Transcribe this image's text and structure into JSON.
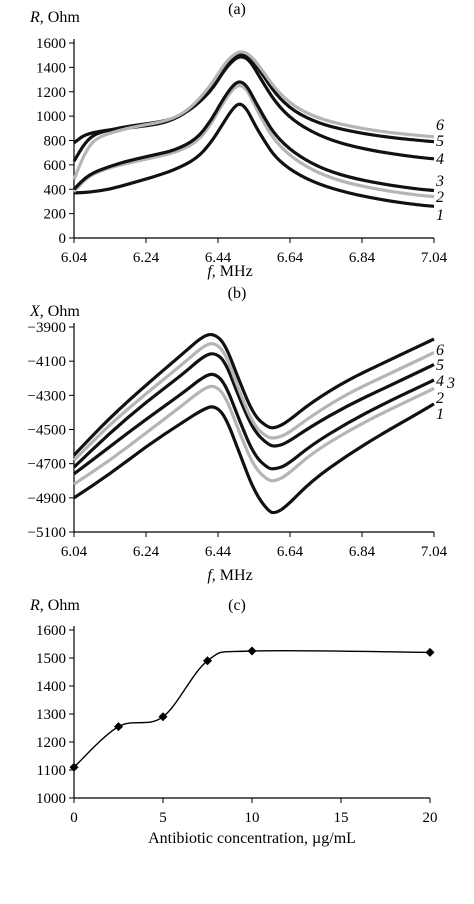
{
  "chart_data": [
    {
      "type": "line",
      "panel_label": "(a)",
      "ylabel_var": "R",
      "ylabel_unit": ", Ohm",
      "xlabel_var": "f",
      "xlabel_unit": ", MHz",
      "xlim": [
        6.04,
        7.04
      ],
      "ylim": [
        0,
        1600
      ],
      "xticks": [
        6.04,
        6.24,
        6.44,
        6.64,
        6.84,
        7.04
      ],
      "yticks": [
        0,
        200,
        400,
        600,
        800,
        1000,
        1200,
        1400,
        1600
      ],
      "series": [
        {
          "name": "1",
          "color": "#111111",
          "points": [
            [
              6.04,
              370
            ],
            [
              6.08,
              375
            ],
            [
              6.14,
              400
            ],
            [
              6.2,
              450
            ],
            [
              6.26,
              500
            ],
            [
              6.32,
              560
            ],
            [
              6.38,
              650
            ],
            [
              6.42,
              780
            ],
            [
              6.45,
              920
            ],
            [
              6.48,
              1060
            ],
            [
              6.5,
              1110
            ],
            [
              6.52,
              1060
            ],
            [
              6.54,
              940
            ],
            [
              6.57,
              790
            ],
            [
              6.6,
              660
            ],
            [
              6.65,
              540
            ],
            [
              6.72,
              440
            ],
            [
              6.8,
              370
            ],
            [
              6.9,
              310
            ],
            [
              7.0,
              270
            ],
            [
              7.04,
              260
            ]
          ]
        },
        {
          "name": "2",
          "color": "#b5b5b5",
          "points": [
            [
              6.04,
              380
            ],
            [
              6.08,
              510
            ],
            [
              6.14,
              580
            ],
            [
              6.2,
              620
            ],
            [
              6.26,
              660
            ],
            [
              6.32,
              700
            ],
            [
              6.38,
              780
            ],
            [
              6.42,
              930
            ],
            [
              6.45,
              1090
            ],
            [
              6.48,
              1220
            ],
            [
              6.5,
              1260
            ],
            [
              6.52,
              1220
            ],
            [
              6.54,
              1100
            ],
            [
              6.57,
              930
            ],
            [
              6.6,
              790
            ],
            [
              6.65,
              650
            ],
            [
              6.72,
              530
            ],
            [
              6.8,
              450
            ],
            [
              6.9,
              390
            ],
            [
              7.0,
              350
            ],
            [
              7.04,
              340
            ]
          ]
        },
        {
          "name": "3",
          "color": "#111111",
          "points": [
            [
              6.04,
              400
            ],
            [
              6.08,
              520
            ],
            [
              6.14,
              590
            ],
            [
              6.2,
              640
            ],
            [
              6.26,
              680
            ],
            [
              6.32,
              720
            ],
            [
              6.38,
              810
            ],
            [
              6.42,
              960
            ],
            [
              6.45,
              1120
            ],
            [
              6.48,
              1250
            ],
            [
              6.5,
              1290
            ],
            [
              6.52,
              1250
            ],
            [
              6.54,
              1140
            ],
            [
              6.57,
              980
            ],
            [
              6.6,
              840
            ],
            [
              6.65,
              700
            ],
            [
              6.72,
              580
            ],
            [
              6.8,
              500
            ],
            [
              6.9,
              440
            ],
            [
              7.0,
              400
            ],
            [
              7.04,
              390
            ]
          ]
        },
        {
          "name": "4",
          "color": "#111111",
          "points": [
            [
              6.04,
              630
            ],
            [
              6.07,
              780
            ],
            [
              6.1,
              860
            ],
            [
              6.16,
              900
            ],
            [
              6.22,
              930
            ],
            [
              6.3,
              960
            ],
            [
              6.36,
              1040
            ],
            [
              6.42,
              1200
            ],
            [
              6.46,
              1390
            ],
            [
              6.49,
              1480
            ],
            [
              6.51,
              1490
            ],
            [
              6.53,
              1450
            ],
            [
              6.56,
              1300
            ],
            [
              6.6,
              1110
            ],
            [
              6.65,
              960
            ],
            [
              6.72,
              840
            ],
            [
              6.8,
              760
            ],
            [
              6.9,
              700
            ],
            [
              7.0,
              660
            ],
            [
              7.04,
              650
            ]
          ]
        },
        {
          "name": "5",
          "color": "#111111",
          "points": [
            [
              6.04,
              780
            ],
            [
              6.07,
              850
            ],
            [
              6.12,
              880
            ],
            [
              6.18,
              900
            ],
            [
              6.24,
              920
            ],
            [
              6.3,
              950
            ],
            [
              6.36,
              1040
            ],
            [
              6.42,
              1230
            ],
            [
              6.46,
              1420
            ],
            [
              6.49,
              1500
            ],
            [
              6.51,
              1510
            ],
            [
              6.53,
              1480
            ],
            [
              6.56,
              1360
            ],
            [
              6.6,
              1180
            ],
            [
              6.65,
              1040
            ],
            [
              6.72,
              940
            ],
            [
              6.8,
              880
            ],
            [
              6.9,
              830
            ],
            [
              7.0,
              800
            ],
            [
              7.04,
              790
            ]
          ]
        },
        {
          "name": "6",
          "color": "#b5b5b5",
          "points": [
            [
              6.04,
              480
            ],
            [
              6.07,
              700
            ],
            [
              6.1,
              820
            ],
            [
              6.16,
              880
            ],
            [
              6.22,
              920
            ],
            [
              6.3,
              960
            ],
            [
              6.36,
              1050
            ],
            [
              6.42,
              1250
            ],
            [
              6.46,
              1440
            ],
            [
              6.49,
              1520
            ],
            [
              6.51,
              1530
            ],
            [
              6.53,
              1500
            ],
            [
              6.56,
              1390
            ],
            [
              6.6,
              1220
            ],
            [
              6.65,
              1080
            ],
            [
              6.72,
              980
            ],
            [
              6.8,
              920
            ],
            [
              6.9,
              870
            ],
            [
              7.0,
              840
            ],
            [
              7.04,
              830
            ]
          ]
        }
      ]
    },
    {
      "type": "line",
      "panel_label": "(b)",
      "ylabel_var": "X",
      "ylabel_unit": ", Ohm",
      "xlabel_var": "f",
      "xlabel_unit": ", MHz",
      "xlim": [
        6.04,
        7.04
      ],
      "ylim": [
        -5100,
        -3900
      ],
      "xticks": [
        6.04,
        6.24,
        6.44,
        6.64,
        6.84,
        7.04
      ],
      "yticks": [
        -3900,
        -4100,
        -4300,
        -4500,
        -4700,
        -4900,
        -5100
      ],
      "ytick_labels": [
        "−3900",
        "−4100",
        "−4300",
        "−4500",
        "−4700",
        "−4900",
        "−5100"
      ],
      "series": [
        {
          "name": "1",
          "color": "#111111",
          "points": [
            [
              6.04,
              -4900
            ],
            [
              6.14,
              -4760
            ],
            [
              6.24,
              -4600
            ],
            [
              6.34,
              -4460
            ],
            [
              6.4,
              -4380
            ],
            [
              6.43,
              -4360
            ],
            [
              6.46,
              -4420
            ],
            [
              6.5,
              -4640
            ],
            [
              6.54,
              -4860
            ],
            [
              6.58,
              -4980
            ],
            [
              6.6,
              -4990
            ],
            [
              6.63,
              -4950
            ],
            [
              6.7,
              -4800
            ],
            [
              6.8,
              -4650
            ],
            [
              6.9,
              -4520
            ],
            [
              7.0,
              -4400
            ],
            [
              7.04,
              -4350
            ]
          ]
        },
        {
          "name": "2",
          "color": "#b5b5b5",
          "points": [
            [
              6.04,
              -4820
            ],
            [
              6.14,
              -4680
            ],
            [
              6.24,
              -4520
            ],
            [
              6.34,
              -4360
            ],
            [
              6.4,
              -4260
            ],
            [
              6.43,
              -4240
            ],
            [
              6.46,
              -4300
            ],
            [
              6.5,
              -4520
            ],
            [
              6.54,
              -4720
            ],
            [
              6.58,
              -4800
            ],
            [
              6.6,
              -4800
            ],
            [
              6.63,
              -4770
            ],
            [
              6.7,
              -4640
            ],
            [
              6.8,
              -4510
            ],
            [
              6.9,
              -4400
            ],
            [
              7.0,
              -4300
            ],
            [
              7.04,
              -4260
            ]
          ]
        },
        {
          "name": "3",
          "color": "#111111",
          "points": [
            [
              6.04,
              -4760
            ],
            [
              6.14,
              -4600
            ],
            [
              6.24,
              -4440
            ],
            [
              6.34,
              -4290
            ],
            [
              6.4,
              -4190
            ],
            [
              6.43,
              -4170
            ],
            [
              6.46,
              -4230
            ],
            [
              6.5,
              -4450
            ],
            [
              6.54,
              -4650
            ],
            [
              6.58,
              -4730
            ],
            [
              6.6,
              -4730
            ],
            [
              6.63,
              -4710
            ],
            [
              6.7,
              -4590
            ],
            [
              6.8,
              -4460
            ],
            [
              6.9,
              -4350
            ],
            [
              7.0,
              -4250
            ],
            [
              7.04,
              -4210
            ]
          ]
        },
        {
          "name": "4",
          "color": "#111111",
          "points": [
            [
              6.04,
              -4720
            ],
            [
              6.14,
              -4520
            ],
            [
              6.24,
              -4340
            ],
            [
              6.34,
              -4180
            ],
            [
              6.4,
              -4070
            ],
            [
              6.43,
              -4050
            ],
            [
              6.46,
              -4100
            ],
            [
              6.5,
              -4320
            ],
            [
              6.54,
              -4510
            ],
            [
              6.58,
              -4590
            ],
            [
              6.6,
              -4600
            ],
            [
              6.63,
              -4580
            ],
            [
              6.7,
              -4480
            ],
            [
              6.8,
              -4360
            ],
            [
              6.9,
              -4260
            ],
            [
              7.0,
              -4160
            ],
            [
              7.04,
              -4120
            ]
          ]
        },
        {
          "name": "5",
          "color": "#b5b5b5",
          "points": [
            [
              6.04,
              -4680
            ],
            [
              6.14,
              -4470
            ],
            [
              6.24,
              -4290
            ],
            [
              6.34,
              -4120
            ],
            [
              6.4,
              -4010
            ],
            [
              6.43,
              -3990
            ],
            [
              6.46,
              -4050
            ],
            [
              6.5,
              -4280
            ],
            [
              6.54,
              -4480
            ],
            [
              6.58,
              -4550
            ],
            [
              6.6,
              -4550
            ],
            [
              6.63,
              -4530
            ],
            [
              6.7,
              -4420
            ],
            [
              6.8,
              -4290
            ],
            [
              6.9,
              -4190
            ],
            [
              7.0,
              -4090
            ],
            [
              7.04,
              -4050
            ]
          ]
        },
        {
          "name": "6",
          "color": "#111111",
          "points": [
            [
              6.04,
              -4650
            ],
            [
              6.14,
              -4430
            ],
            [
              6.24,
              -4240
            ],
            [
              6.34,
              -4060
            ],
            [
              6.4,
              -3950
            ],
            [
              6.43,
              -3940
            ],
            [
              6.46,
              -4000
            ],
            [
              6.5,
              -4220
            ],
            [
              6.54,
              -4420
            ],
            [
              6.58,
              -4490
            ],
            [
              6.6,
              -4490
            ],
            [
              6.63,
              -4460
            ],
            [
              6.7,
              -4340
            ],
            [
              6.8,
              -4210
            ],
            [
              6.9,
              -4110
            ],
            [
              7.0,
              -4010
            ],
            [
              7.04,
              -3970
            ]
          ]
        }
      ]
    },
    {
      "type": "line",
      "panel_label": "(c)",
      "ylabel_var": "R",
      "ylabel_unit": ", Ohm",
      "xlabel": "Antibiotic concentration, µg/mL",
      "xlim": [
        0,
        20
      ],
      "ylim": [
        1000,
        1600
      ],
      "xticks": [
        0,
        5,
        10,
        15,
        20
      ],
      "yticks": [
        1000,
        1100,
        1200,
        1300,
        1400,
        1500,
        1600
      ],
      "x": [
        0,
        2.5,
        5,
        7.5,
        10,
        20
      ],
      "values": [
        1110,
        1255,
        1290,
        1490,
        1525,
        1520
      ]
    }
  ]
}
